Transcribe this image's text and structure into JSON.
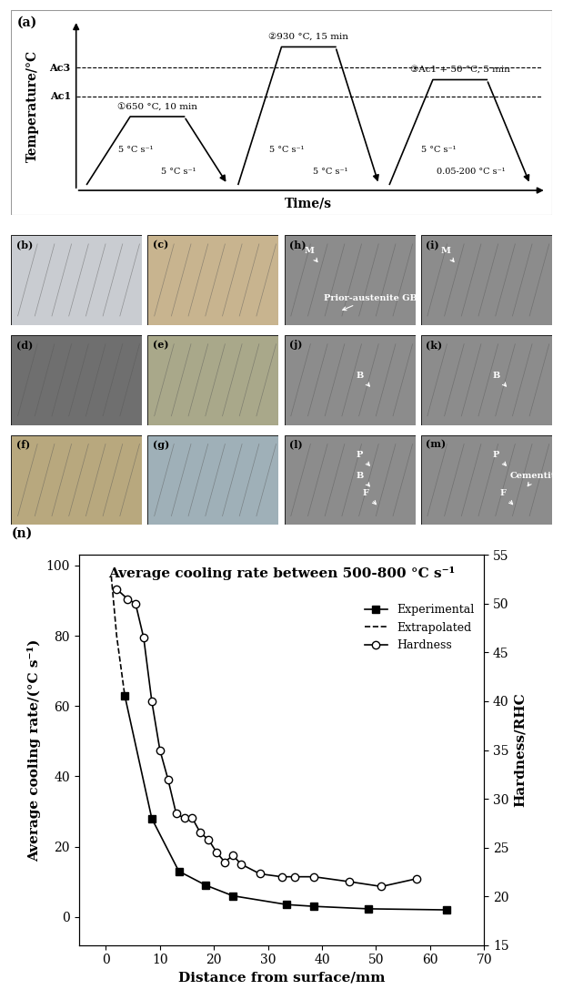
{
  "panel_a": {
    "label": "(a)",
    "type": "diagram",
    "xlabel": "Time/s",
    "ylabel": "Temperature/°C",
    "levels": [
      {
        "label": "Ac3"
      },
      {
        "label": "Ac1"
      }
    ],
    "steps": [
      {
        "label": "①650 °C, 10 min",
        "heating": "5 °C s⁻¹",
        "cooling": "5 °C s⁻¹"
      },
      {
        "label": "②930 °C, 15 min",
        "heating": "5 °C s⁻¹",
        "cooling": "5 °C s⁻¹"
      },
      {
        "label": "③Ac1 + 50 °C, 5 min",
        "heating": "5 °C s⁻¹",
        "cooling": "0.05-200 °C s⁻¹"
      }
    ]
  },
  "micrographs": [
    {
      "label": "(b)",
      "annotations": []
    },
    {
      "label": "(c)",
      "annotations": []
    },
    {
      "label": "(h)",
      "annotations": [
        "M",
        "Prior-austenite GB"
      ]
    },
    {
      "label": "(i)",
      "annotations": [
        "M"
      ]
    },
    {
      "label": "(d)",
      "annotations": []
    },
    {
      "label": "(e)",
      "annotations": []
    },
    {
      "label": "(j)",
      "annotations": [
        "B"
      ]
    },
    {
      "label": "(k)",
      "annotations": [
        "B"
      ]
    },
    {
      "label": "(f)",
      "annotations": []
    },
    {
      "label": "(g)",
      "annotations": []
    },
    {
      "label": "(l)",
      "annotations": [
        "B",
        "P",
        "F"
      ]
    },
    {
      "label": "(m)",
      "annotations": [
        "F",
        "P",
        "Cementite"
      ]
    }
  ],
  "chart_data": {
    "type": "line",
    "label": "(n)",
    "title": "Average cooling rate between 500-800 °C s⁻¹",
    "xlabel": "Distance from surface/mm",
    "ylabel": "Average cooling rate/(°C s⁻¹)",
    "y2label": "Hardness/RHC",
    "xlim": [
      -5,
      70
    ],
    "xticks": [
      0,
      10,
      20,
      30,
      40,
      50,
      60,
      70
    ],
    "ylim": [
      -8,
      103
    ],
    "yticks": [
      0,
      20,
      40,
      60,
      80,
      100
    ],
    "y2lim": [
      15,
      55
    ],
    "y2ticks": [
      15,
      20,
      25,
      30,
      35,
      40,
      45,
      50,
      55
    ],
    "legend": "upper right",
    "series": [
      {
        "name": "Experimental",
        "color": "#000000",
        "marker": "square",
        "line_style": "solid",
        "x": [
          3.5,
          8.5,
          13.5,
          18.5,
          23.5,
          33.5,
          38.5,
          48.5,
          63
        ],
        "values": [
          63,
          28,
          13,
          9,
          6,
          3.5,
          3,
          2.3,
          2
        ]
      },
      {
        "name": "Extrapolated",
        "color": "#000000",
        "marker": "none",
        "line_style": "dashed",
        "x": [
          1,
          2,
          3.5
        ],
        "values": [
          97,
          80,
          63
        ]
      },
      {
        "name": "Hardness",
        "color": "#000000",
        "marker": "open_circle",
        "line_style": "solid",
        "axis": "y2",
        "x": [
          2,
          4,
          5.5,
          7,
          8.5,
          10,
          11.5,
          13,
          14.5,
          16,
          17.5,
          19,
          20.5,
          22,
          23.5,
          25,
          28.5,
          32.5,
          35,
          38.5,
          45,
          51,
          57.5
        ],
        "values": [
          51.5,
          50.5,
          50,
          46.5,
          40,
          35,
          32,
          28.5,
          28,
          28,
          26.5,
          25.8,
          24.5,
          23.5,
          24.2,
          23.3,
          22.3,
          22,
          22,
          22,
          21.5,
          21,
          21.8
        ]
      }
    ]
  }
}
